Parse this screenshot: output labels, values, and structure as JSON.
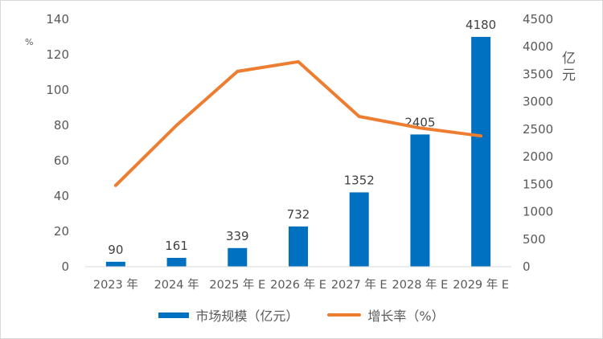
{
  "chart_data": {
    "type": "bar",
    "categories": [
      "2023 年",
      "2024 年",
      "2025 年 E",
      "2026 年 E",
      "2027 年 E",
      "2028 年 E",
      "2029 年 E"
    ],
    "series": [
      {
        "name": "市场规模（亿元）",
        "type": "bar",
        "axis": "right",
        "values": [
          90,
          161,
          339,
          732,
          1352,
          2405,
          4180
        ],
        "color": "#0070c0"
      },
      {
        "name": "增长率（%）",
        "type": "line",
        "axis": "left",
        "values": [
          46,
          80,
          110.5,
          116,
          85,
          78.5,
          74
        ],
        "color": "#ed7d31"
      }
    ],
    "data_labels": [
      "90",
      "161",
      "339",
      "732",
      "1352",
      "2405",
      "4180"
    ],
    "left_axis": {
      "ylim": [
        0,
        140
      ],
      "ticks": [
        "0",
        "20",
        "40",
        "60",
        "80",
        "100",
        "120",
        "140"
      ],
      "unit": "%"
    },
    "right_axis": {
      "ylim": [
        0,
        4500
      ],
      "ticks": [
        "0",
        "500",
        "1000",
        "1500",
        "2000",
        "2500",
        "3000",
        "3500",
        "4000",
        "4500"
      ],
      "unit_line1": "亿",
      "unit_line2": "元"
    },
    "legend": {
      "position": "bottom",
      "bar_label": "市场规模（亿元）",
      "line_label": "增长率（%）"
    }
  }
}
